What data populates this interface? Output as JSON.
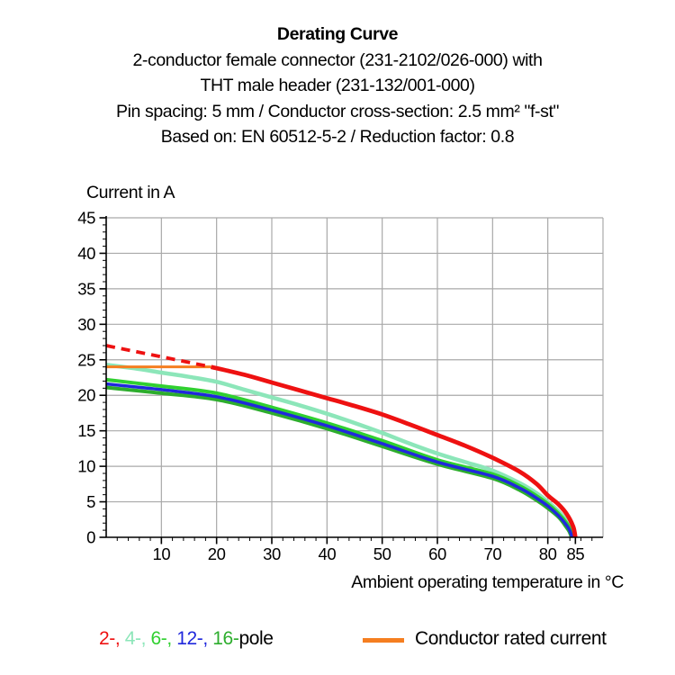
{
  "header": {
    "title": "Derating Curve",
    "subtitle_lines": [
      "2-conductor female connector (231-2102/026-000) with",
      "THT male header (231-132/001-000)",
      "Pin spacing: 5 mm / Conductor cross-section: 2.5 mm² \"f-st\"",
      "Based on: EN 60512-5-2 / Reduction factor: 0.8"
    ]
  },
  "chart_data": {
    "type": "line",
    "title": "Derating Curve",
    "ylabel": "Current in A",
    "xlabel": "Ambient operating temperature in °C",
    "xlim": [
      0,
      90
    ],
    "ylim": [
      0,
      45
    ],
    "x_major_ticks": [
      10,
      20,
      30,
      40,
      50,
      60,
      70,
      80,
      85
    ],
    "x_minor_step": 2,
    "y_major_ticks": [
      0,
      5,
      10,
      15,
      20,
      25,
      30,
      35,
      40,
      45
    ],
    "y_minor_step": 1,
    "grid": true,
    "grid_x_step": 10,
    "grid_y_step": 5,
    "grid_color": "#a9a9a9",
    "axis_color": "#000000",
    "series": [
      {
        "name": "4-pole",
        "color": "#8ce6b9",
        "width": 4.5,
        "dash": null,
        "points": [
          [
            0,
            24.3
          ],
          [
            5,
            23.8
          ],
          [
            10,
            23.2
          ],
          [
            15,
            22.6
          ],
          [
            20,
            21.9
          ],
          [
            25,
            20.8
          ],
          [
            30,
            19.7
          ],
          [
            35,
            18.6
          ],
          [
            40,
            17.4
          ],
          [
            45,
            16.1
          ],
          [
            50,
            14.7
          ],
          [
            55,
            13.2
          ],
          [
            60,
            11.8
          ],
          [
            65,
            10.6
          ],
          [
            70,
            9.4
          ],
          [
            75,
            7.6
          ],
          [
            78,
            6.2
          ],
          [
            80,
            5.0
          ],
          [
            82,
            3.6
          ],
          [
            83.5,
            2.2
          ],
          [
            84.2,
            1.1
          ],
          [
            84.7,
            0
          ]
        ]
      },
      {
        "name": "conductor-rated-current",
        "color": "#f57e20",
        "width": 3,
        "dash": null,
        "points": [
          [
            0,
            24
          ],
          [
            19,
            24
          ]
        ]
      },
      {
        "name": "6-pole",
        "color": "#30d030",
        "width": 4,
        "dash": null,
        "points": [
          [
            0,
            22.2
          ],
          [
            10,
            21.3
          ],
          [
            20,
            20.3
          ],
          [
            30,
            18.3
          ],
          [
            40,
            16.1
          ],
          [
            50,
            13.6
          ],
          [
            60,
            10.9
          ],
          [
            70,
            8.9
          ],
          [
            75,
            7.2
          ],
          [
            78,
            5.8
          ],
          [
            80,
            4.7
          ],
          [
            82,
            3.3
          ],
          [
            83.5,
            1.9
          ],
          [
            84.1,
            1.0
          ],
          [
            84.5,
            0
          ]
        ]
      },
      {
        "name": "16-pole",
        "color": "#2dad2d",
        "width": 4,
        "dash": null,
        "points": [
          [
            0,
            21.1
          ],
          [
            10,
            20.3
          ],
          [
            20,
            19.4
          ],
          [
            30,
            17.5
          ],
          [
            40,
            15.3
          ],
          [
            50,
            12.8
          ],
          [
            60,
            10.3
          ],
          [
            70,
            8.3
          ],
          [
            75,
            6.6
          ],
          [
            78,
            5.2
          ],
          [
            80,
            4.1
          ],
          [
            82,
            2.8
          ],
          [
            83.3,
            1.5
          ],
          [
            83.9,
            0.8
          ],
          [
            84.3,
            0
          ]
        ]
      },
      {
        "name": "12-pole",
        "color": "#2028dc",
        "width": 3.5,
        "dash": null,
        "points": [
          [
            0,
            21.6
          ],
          [
            10,
            20.8
          ],
          [
            20,
            19.8
          ],
          [
            30,
            17.9
          ],
          [
            40,
            15.7
          ],
          [
            50,
            13.2
          ],
          [
            60,
            10.6
          ],
          [
            70,
            8.6
          ],
          [
            75,
            6.9
          ],
          [
            78,
            5.5
          ],
          [
            80,
            4.4
          ],
          [
            82,
            3.0
          ],
          [
            83.4,
            1.7
          ],
          [
            84.0,
            0.9
          ],
          [
            84.4,
            0
          ]
        ]
      },
      {
        "name": "2-pole-extrapolation",
        "color": "#ee1111",
        "width": 3.8,
        "dash": "10 7",
        "points": [
          [
            0,
            27
          ],
          [
            19,
            24
          ]
        ]
      },
      {
        "name": "2-pole",
        "color": "#ee1111",
        "width": 4.8,
        "dash": null,
        "points": [
          [
            19,
            24
          ],
          [
            25,
            22.9
          ],
          [
            30,
            21.8
          ],
          [
            35,
            20.7
          ],
          [
            40,
            19.6
          ],
          [
            45,
            18.5
          ],
          [
            50,
            17.3
          ],
          [
            55,
            15.9
          ],
          [
            60,
            14.4
          ],
          [
            65,
            12.9
          ],
          [
            70,
            11.2
          ],
          [
            75,
            9.2
          ],
          [
            78,
            7.5
          ],
          [
            80,
            5.9
          ],
          [
            82,
            4.6
          ],
          [
            83.5,
            3.2
          ],
          [
            84.6,
            1.5
          ],
          [
            85,
            0
          ]
        ]
      }
    ]
  },
  "legend": {
    "poles": [
      {
        "label": "2-",
        "color": "#ee1111"
      },
      {
        "label": "4-",
        "color": "#8ce6b9"
      },
      {
        "label": "6-",
        "color": "#30d030"
      },
      {
        "label": "12-",
        "color": "#2028dc"
      },
      {
        "label": "16-",
        "color": "#2dad2d"
      }
    ],
    "suffix": "pole",
    "suffix_color": "#000000",
    "rated": {
      "label": "Conductor rated current",
      "color": "#f57e20"
    }
  }
}
